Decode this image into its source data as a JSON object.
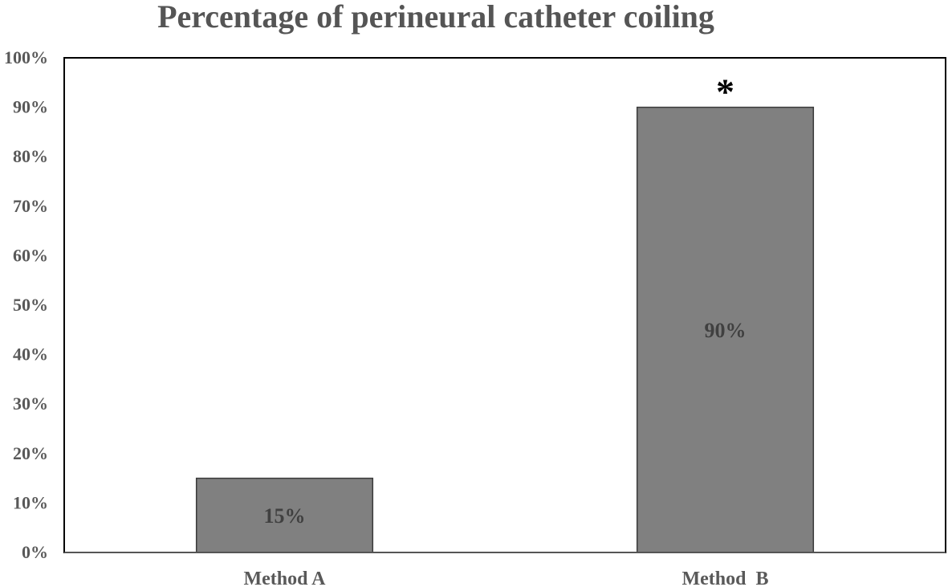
{
  "chart_data": {
    "type": "bar",
    "title": "Percentage of perineural catheter coiling",
    "categories": [
      "Method A",
      "Method  B"
    ],
    "values": [
      15,
      90
    ],
    "data_labels": [
      "15%",
      "90%"
    ],
    "ylim": [
      0,
      100
    ],
    "yticks": [
      0,
      10,
      20,
      30,
      40,
      50,
      60,
      70,
      80,
      90,
      100
    ],
    "ytick_labels": [
      "0%",
      "10%",
      "20%",
      "30%",
      "40%",
      "50%",
      "60%",
      "70%",
      "80%",
      "90%",
      "100%"
    ],
    "xlabel": "",
    "ylabel": "",
    "grid": false,
    "legend": "none",
    "annotations": [
      {
        "category": "Method  B",
        "text": "*"
      }
    ],
    "colors": {
      "bar": "#808080",
      "bar_border": "#3a3a3a",
      "frame": "#000000"
    }
  }
}
